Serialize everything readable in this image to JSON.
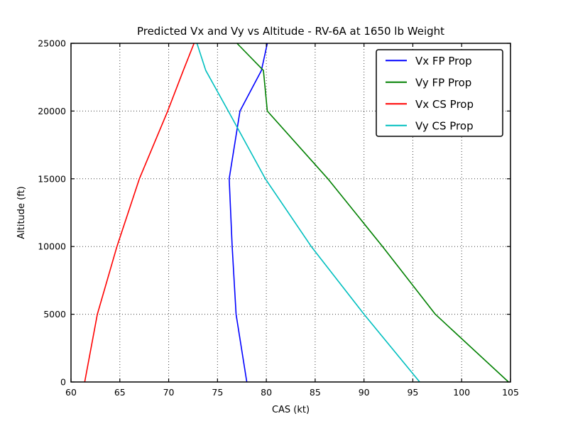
{
  "figure": {
    "background": "#ffffff",
    "frame_color": "#000000",
    "grid_color": "#000000"
  },
  "chart_data": {
    "type": "line",
    "title": "Predicted Vx and Vy vs Altitude - RV-6A at 1650 lb Weight",
    "xlabel": "CAS (kt)",
    "ylabel": "Altitude (ft)",
    "xlim": [
      60,
      105
    ],
    "ylim": [
      0,
      25000
    ],
    "x_ticks": [
      60,
      65,
      70,
      75,
      80,
      85,
      90,
      95,
      100,
      105
    ],
    "y_ticks": [
      0,
      5000,
      10000,
      15000,
      20000,
      25000
    ],
    "grid": true,
    "grid_style": "dotted",
    "legend_position": "upper right",
    "series": [
      {
        "name": "Vx FP Prop",
        "color": "#0000ff",
        "points": [
          [
            78.0,
            0
          ],
          [
            76.9,
            5000
          ],
          [
            76.5,
            10000
          ],
          [
            76.2,
            15000
          ],
          [
            77.3,
            20000
          ],
          [
            79.5,
            23000
          ],
          [
            80.1,
            25000
          ]
        ]
      },
      {
        "name": "Vy FP Prop",
        "color": "#008000",
        "points": [
          [
            104.8,
            0
          ],
          [
            97.3,
            5000
          ],
          [
            91.9,
            10000
          ],
          [
            86.3,
            15000
          ],
          [
            80.1,
            20000
          ],
          [
            79.7,
            23000
          ],
          [
            77.0,
            25000
          ]
        ]
      },
      {
        "name": "Vx CS Prop",
        "color": "#ff0000",
        "points": [
          [
            61.4,
            0
          ],
          [
            62.7,
            5000
          ],
          [
            64.7,
            10000
          ],
          [
            67.0,
            15000
          ],
          [
            69.9,
            20000
          ],
          [
            71.5,
            23000
          ],
          [
            72.6,
            25000
          ]
        ]
      },
      {
        "name": "Vy CS Prop",
        "color": "#00bfbf",
        "points": [
          [
            95.7,
            0
          ],
          [
            90.0,
            5000
          ],
          [
            84.6,
            10000
          ],
          [
            79.9,
            15000
          ],
          [
            76.1,
            20000
          ],
          [
            73.8,
            23000
          ],
          [
            72.9,
            25000
          ]
        ]
      }
    ]
  }
}
